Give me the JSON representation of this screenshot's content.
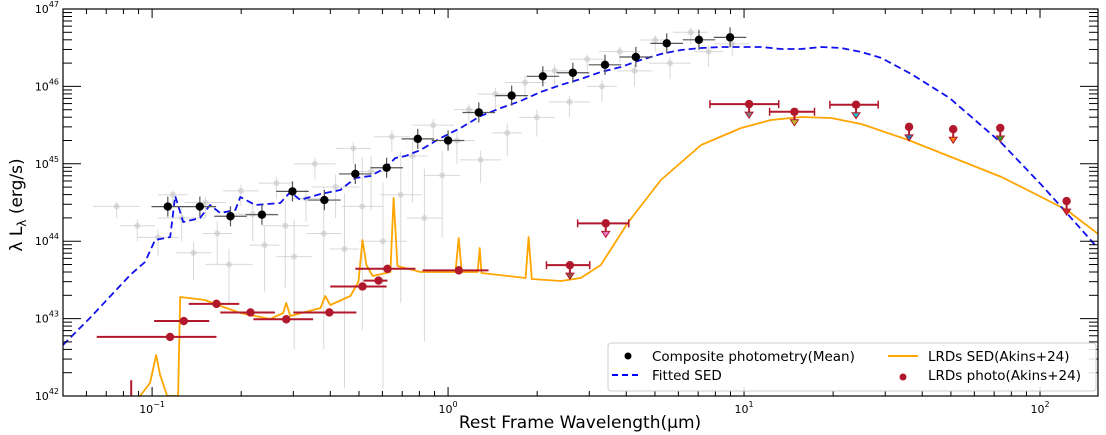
{
  "chart_data": {
    "type": "scatter",
    "title": "",
    "xlabel": "Rest Frame Wavelength(μm)",
    "ylabel": "λ Lλ (erg/s)",
    "xscale": "log",
    "yscale": "log",
    "xlim": [
      0.05,
      157
    ],
    "ylim": [
      1e+42,
      1e+47
    ],
    "x_ticks": [
      {
        "value": 0.1,
        "label": "10^-1"
      },
      {
        "value": 1,
        "label": "10^0"
      },
      {
        "value": 10,
        "label": "10^1"
      },
      {
        "value": 100,
        "label": "10^2"
      }
    ],
    "y_ticks": [
      {
        "value": 1e+42,
        "label": "10^42"
      },
      {
        "value": 1e+43,
        "label": "10^43"
      },
      {
        "value": 1e+44,
        "label": "10^44"
      },
      {
        "value": 1e+45,
        "label": "10^45"
      },
      {
        "value": 1e+46,
        "label": "10^46"
      },
      {
        "value": 1e+47,
        "label": "10^47"
      }
    ],
    "grid": false,
    "legend_position": "bottom-right",
    "legend": [
      {
        "label": "Composite photometry(Mean)",
        "marker": "dot",
        "color": "#000000"
      },
      {
        "label": "LRDs SED(Akins+24)",
        "marker": "line",
        "color": "#ffa500"
      },
      {
        "label": "Fitted SED",
        "marker": "dashed",
        "color": "#0000ff"
      },
      {
        "label": "LRDs photo(Akins+24)",
        "marker": "dot",
        "color": "#b2182b"
      }
    ],
    "colors": {
      "composite": "#000000",
      "fitted": "#1010ee",
      "lrd_sed": "#ffa500",
      "lrd_photo": "#b2182b",
      "background": "#c8c8c8"
    },
    "composite_photometry": {
      "name": "Composite photometry(Mean)",
      "xerr_dex": 0.055,
      "yerr_dex": 0.13,
      "points": [
        [
          0.113,
          2.8e+44
        ],
        [
          0.145,
          2.8e+44
        ],
        [
          0.184,
          2.1e+44
        ],
        [
          0.235,
          2.2e+44
        ],
        [
          0.298,
          4.4e+44
        ],
        [
          0.382,
          3.4e+44
        ],
        [
          0.486,
          7.4e+44
        ],
        [
          0.62,
          8.9e+44
        ],
        [
          0.79,
          2.1e+45
        ],
        [
          1.0,
          2e+45
        ],
        [
          1.27,
          4.6e+45
        ],
        [
          1.64,
          7.6e+45
        ],
        [
          2.09,
          1.35e+46
        ],
        [
          2.64,
          1.5e+46
        ],
        [
          3.39,
          1.9e+46
        ],
        [
          4.31,
          2.4e+46
        ],
        [
          5.48,
          3.6e+46
        ],
        [
          7.04,
          4e+46
        ],
        [
          8.97,
          4.3e+46
        ]
      ]
    },
    "background_points": {
      "name": "individual sources",
      "points_log10": [
        [
          -1.12,
          44.45,
          0.08,
          0.15
        ],
        [
          -1.05,
          44.2,
          0.06,
          0.2
        ],
        [
          -0.98,
          44.05,
          0.07,
          0.25
        ],
        [
          -0.93,
          44.6,
          0.05,
          0.15
        ],
        [
          -0.9,
          44.3,
          0.08,
          0.3
        ],
        [
          -0.86,
          43.85,
          0.06,
          0.35
        ],
        [
          -0.82,
          44.5,
          0.07,
          0.2
        ],
        [
          -0.78,
          44.1,
          0.05,
          0.4
        ],
        [
          -0.74,
          43.7,
          0.08,
          0.5
        ],
        [
          -0.7,
          44.65,
          0.06,
          0.2
        ],
        [
          -0.66,
          44.35,
          0.07,
          0.35
        ],
        [
          -0.62,
          43.95,
          0.05,
          0.6
        ],
        [
          -0.58,
          44.75,
          0.06,
          0.2
        ],
        [
          -0.55,
          44.2,
          0.08,
          0.8
        ],
        [
          -0.52,
          43.8,
          0.06,
          1.2
        ],
        [
          -0.48,
          44.55,
          0.05,
          0.3
        ],
        [
          -0.45,
          45.0,
          0.07,
          0.2
        ],
        [
          -0.42,
          44.1,
          0.06,
          1.5
        ],
        [
          -0.38,
          44.7,
          0.08,
          0.4
        ],
        [
          -0.35,
          43.9,
          0.05,
          1.8
        ],
        [
          -0.32,
          45.2,
          0.06,
          0.2
        ],
        [
          -0.29,
          44.45,
          0.07,
          1.6
        ],
        [
          -0.26,
          44.9,
          0.05,
          0.5
        ],
        [
          -0.22,
          44.0,
          0.08,
          1.9
        ],
        [
          -0.19,
          45.35,
          0.06,
          0.2
        ],
        [
          -0.16,
          44.6,
          0.07,
          1.4
        ],
        [
          -0.12,
          45.1,
          0.05,
          0.6
        ],
        [
          -0.08,
          44.3,
          0.06,
          1.6
        ],
        [
          -0.05,
          45.5,
          0.07,
          0.2
        ],
        [
          -0.02,
          44.85,
          0.06,
          0.8
        ],
        [
          0.03,
          45.3,
          0.06,
          0.3
        ],
        [
          0.07,
          45.7,
          0.05,
          0.2
        ],
        [
          0.11,
          45.05,
          0.07,
          0.3
        ],
        [
          0.16,
          45.9,
          0.06,
          0.2
        ],
        [
          0.2,
          45.4,
          0.05,
          0.3
        ],
        [
          0.26,
          46.05,
          0.07,
          0.2
        ],
        [
          0.3,
          45.6,
          0.06,
          0.25
        ],
        [
          0.36,
          46.2,
          0.05,
          0.2
        ],
        [
          0.41,
          45.8,
          0.07,
          0.2
        ],
        [
          0.47,
          46.35,
          0.06,
          0.15
        ],
        [
          0.52,
          46.0,
          0.05,
          0.2
        ],
        [
          0.58,
          46.45,
          0.07,
          0.15
        ],
        [
          0.63,
          46.2,
          0.06,
          0.2
        ],
        [
          0.7,
          46.6,
          0.05,
          0.15
        ],
        [
          0.75,
          46.3,
          0.07,
          0.2
        ],
        [
          0.82,
          46.7,
          0.06,
          0.15
        ],
        [
          0.88,
          46.45,
          0.05,
          0.2
        ],
        [
          0.96,
          46.55,
          0.06,
          0.15
        ]
      ]
    },
    "fitted_sed": {
      "name": "Fitted SED",
      "log10_wavelength": [
        -1.301,
        -1.21,
        -1.074,
        -1.024,
        -0.99,
        -0.939,
        -0.922,
        -0.895,
        -0.838,
        -0.804,
        -0.77,
        -0.719,
        -0.702,
        -0.651,
        -0.567,
        -0.533,
        -0.499,
        -0.431,
        -0.364,
        -0.313,
        -0.262,
        -0.212,
        -0.178,
        -0.144,
        -0.093,
        -0.025,
        0.042,
        0.11,
        0.178,
        0.245,
        0.313,
        0.381,
        0.448,
        0.516,
        0.584,
        0.651,
        0.719,
        0.787,
        0.855,
        0.922,
        1.058,
        1.125,
        1.193,
        1.261,
        1.328,
        1.396,
        1.464,
        1.565,
        1.694,
        1.87,
        2.005,
        2.09,
        2.201
      ],
      "log10_luminosity": [
        42.659,
        43.008,
        43.563,
        43.731,
        44.016,
        44.054,
        44.584,
        44.248,
        44.3,
        44.468,
        44.364,
        44.403,
        44.571,
        44.468,
        44.494,
        44.636,
        44.532,
        44.61,
        44.661,
        44.817,
        44.842,
        44.946,
        45.075,
        45.101,
        45.178,
        45.333,
        45.463,
        45.618,
        45.721,
        45.811,
        45.928,
        46.018,
        46.096,
        46.186,
        46.251,
        46.341,
        46.419,
        46.47,
        46.496,
        46.509,
        46.509,
        46.483,
        46.483,
        46.509,
        46.496,
        46.444,
        46.367,
        46.16,
        45.85,
        45.269,
        44.726,
        44.364,
        43.886
      ]
    },
    "lrd_sed": {
      "name": "LRDs SED(Akins+24)",
      "log10_wavelength": [
        -1.041,
        -1.007,
        -0.986,
        -0.973,
        -0.949,
        -0.912,
        -0.905,
        -0.821,
        -0.787,
        -0.702,
        -0.601,
        -0.557,
        -0.547,
        -0.533,
        -0.431,
        -0.415,
        -0.398,
        -0.33,
        -0.303,
        -0.289,
        -0.276,
        -0.255,
        -0.195,
        -0.184,
        -0.171,
        -0.093,
        0.025,
        0.036,
        0.046,
        0.1,
        0.107,
        0.113,
        0.262,
        0.272,
        0.283,
        0.381,
        0.448,
        0.516,
        0.607,
        0.719,
        0.855,
        0.99,
        1.091,
        1.193,
        1.294,
        1.396,
        1.555,
        1.7,
        1.87,
        1.971,
        2.09,
        2.201
      ],
      "log10_luminosity": [
        42.0,
        42.168,
        42.53,
        42.271,
        42.0,
        42.0,
        43.279,
        43.24,
        43.189,
        43.072,
        42.995,
        43.072,
        43.202,
        43.034,
        43.137,
        43.292,
        43.176,
        43.292,
        43.473,
        44.016,
        43.692,
        43.55,
        43.602,
        44.558,
        43.68,
        43.602,
        43.602,
        44.041,
        43.602,
        43.602,
        43.912,
        43.589,
        43.525,
        44.054,
        43.512,
        43.486,
        43.525,
        43.692,
        44.235,
        44.791,
        45.243,
        45.463,
        45.566,
        45.605,
        45.592,
        45.514,
        45.307,
        45.088,
        44.829,
        44.636,
        44.403,
        44.08
      ]
    },
    "lrd_photo": {
      "name": "LRDs photo(Akins+24)",
      "points": [
        {
          "x": 0.085,
          "y": 8e+41,
          "xlo": 0.085,
          "xhi": 0.085,
          "yhi": 1.6e+42,
          "upper_limit": false
        },
        {
          "x": 0.115,
          "y": 5.8e+42,
          "xlo": 0.065,
          "xhi": 0.165,
          "upper_limit": false
        },
        {
          "x": 0.128,
          "y": 9.3e+42,
          "xlo": 0.1016,
          "xhi": 0.156,
          "upper_limit": false
        },
        {
          "x": 0.165,
          "y": 1.55e+43,
          "xlo": 0.133,
          "xhi": 0.197,
          "upper_limit": false
        },
        {
          "x": 0.215,
          "y": 1.2e+43,
          "xlo": 0.17,
          "xhi": 0.26,
          "upper_limit": false
        },
        {
          "x": 0.284,
          "y": 9.8e+42,
          "xlo": 0.22,
          "xhi": 0.35,
          "upper_limit": false
        },
        {
          "x": 0.397,
          "y": 1.2e+43,
          "xlo": 0.3,
          "xhi": 0.49,
          "upper_limit": false
        },
        {
          "x": 0.514,
          "y": 2.6e+43,
          "xlo": 0.4,
          "xhi": 0.62,
          "upper_limit": false
        },
        {
          "x": 0.582,
          "y": 3.1e+43,
          "xlo": 0.518,
          "xhi": 0.624,
          "upper_limit": false
        },
        {
          "x": 0.624,
          "y": 4.4e+43,
          "xlo": 0.486,
          "xhi": 0.776,
          "upper_limit": false
        },
        {
          "x": 1.087,
          "y": 4.2e+43,
          "xlo": 0.82,
          "xhi": 1.37,
          "upper_limit": false
        },
        {
          "x": 2.58,
          "y": 4.9e+43,
          "xlo": 2.15,
          "xhi": 3.01,
          "upper_limit": true,
          "arrow_color": "#8c564b"
        },
        {
          "x": 3.41,
          "y": 1.7e+44,
          "xlo": 2.74,
          "xhi": 4.08,
          "upper_limit": true,
          "arrow_color": "#e377c2"
        },
        {
          "x": 10.4,
          "y": 5.9e+45,
          "xlo": 7.67,
          "xhi": 13.1,
          "upper_limit": true,
          "arrow_color": "#7f7f7f"
        },
        {
          "x": 14.8,
          "y": 4.7e+45,
          "xlo": 12.2,
          "xhi": 17.3,
          "upper_limit": true,
          "arrow_color": "#bcbd22"
        },
        {
          "x": 23.9,
          "y": 5.8e+45,
          "xlo": 19.5,
          "xhi": 28.4,
          "upper_limit": true,
          "arrow_color": "#17becf"
        },
        {
          "x": 36.1,
          "y": 3e+45,
          "upper_limit": true,
          "arrow_color": "#1f77b4"
        },
        {
          "x": 50.9,
          "y": 2.8e+45,
          "upper_limit": true,
          "arrow_color": "#ff7f0e"
        },
        {
          "x": 73.4,
          "y": 2.9e+45,
          "upper_limit": true,
          "arrow_color": "#2ca02c"
        },
        {
          "x": 123,
          "y": 3.3e+44,
          "upper_limit": true,
          "arrow_color": "#d62728"
        }
      ]
    }
  }
}
